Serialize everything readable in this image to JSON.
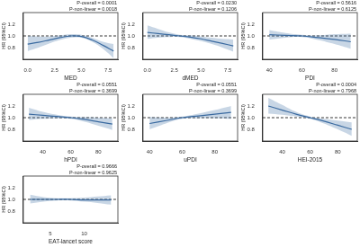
{
  "chart_data": [
    {
      "type": "line",
      "x_label": "MED",
      "y_label": "HR (95%CI)",
      "annotations": [
        "P-overall = 0.0001",
        "P-non-linear = 0.0018"
      ],
      "x": [
        0,
        1,
        2,
        3,
        4,
        5,
        6,
        7,
        8
      ],
      "values": [
        0.86,
        0.89,
        0.93,
        0.97,
        1.0,
        0.99,
        0.93,
        0.84,
        0.74
      ],
      "lower": [
        0.74,
        0.8,
        0.87,
        0.93,
        0.97,
        0.97,
        0.9,
        0.78,
        0.62
      ],
      "upper": [
        1.0,
        0.99,
        0.99,
        1.01,
        1.03,
        1.02,
        0.97,
        0.9,
        0.86
      ],
      "xlim": [
        -0.4,
        8.4
      ],
      "xticks": [
        {
          "value": 0,
          "label": "0.0"
        },
        {
          "value": 2.5,
          "label": "2.5"
        },
        {
          "value": 5,
          "label": "5.0"
        },
        {
          "value": 7.5,
          "label": "7.5"
        }
      ],
      "ylim": [
        0.6,
        1.4
      ],
      "yticks": [
        0.8,
        {
          "value": 1,
          "label": "1.0"
        },
        1.2
      ],
      "reference_line": 1,
      "color": "#3b6aa0"
    },
    {
      "type": "line",
      "x_label": "dMED",
      "y_label": "HR (95%CI)",
      "annotations": [
        "P-overall = 0.0230",
        "P-non-linear = 0.1206"
      ],
      "x": [
        0,
        1,
        2,
        3,
        4,
        5,
        6,
        7,
        8
      ],
      "values": [
        1.06,
        1.04,
        1.02,
        1.0,
        0.98,
        0.95,
        0.91,
        0.87,
        0.83
      ],
      "lower": [
        0.95,
        0.97,
        0.98,
        0.98,
        0.95,
        0.91,
        0.86,
        0.8,
        0.73
      ],
      "upper": [
        1.18,
        1.12,
        1.06,
        1.02,
        1.01,
        0.99,
        0.97,
        0.95,
        0.94
      ],
      "xlim": [
        -0.4,
        8.4
      ],
      "xticks": [
        {
          "value": 0,
          "label": "0.0"
        },
        {
          "value": 2.5,
          "label": "2.5"
        },
        {
          "value": 5,
          "label": "5.0"
        },
        {
          "value": 7.5,
          "label": "7.5"
        }
      ],
      "ylim": [
        0.6,
        1.4
      ],
      "yticks": [
        0.8,
        {
          "value": 1,
          "label": "1.0"
        },
        1.2
      ],
      "reference_line": 1,
      "color": "#3b6aa0"
    },
    {
      "type": "line",
      "x_label": "PDI",
      "y_label": "HR (95%CI)",
      "annotations": [
        "P-overall = 0.5616",
        "P-non-linear = 0.6125"
      ],
      "x": [
        40,
        50,
        60,
        70,
        80,
        90
      ],
      "values": [
        1.02,
        1.01,
        1.0,
        0.97,
        0.94,
        0.9
      ],
      "lower": [
        0.94,
        0.97,
        0.98,
        0.93,
        0.86,
        0.78
      ],
      "upper": [
        1.1,
        1.05,
        1.02,
        1.01,
        1.03,
        1.04
      ],
      "xlim": [
        36,
        94
      ],
      "xticks": [
        40,
        60,
        80
      ],
      "ylim": [
        0.6,
        1.4
      ],
      "yticks": [
        0.8,
        {
          "value": 1,
          "label": "1.0"
        },
        1.2
      ],
      "reference_line": 1,
      "color": "#3b6aa0"
    },
    {
      "type": "line",
      "x_label": "hPDI",
      "y_label": "HR (95%CI)",
      "annotations": [
        "P-overall = 0.0551",
        "P-non-linear = 0.3699"
      ],
      "x": [
        30,
        40,
        50,
        60,
        70,
        80,
        90
      ],
      "values": [
        1.06,
        1.04,
        1.02,
        1.0,
        0.97,
        0.93,
        0.89
      ],
      "lower": [
        0.96,
        0.98,
        0.99,
        0.98,
        0.93,
        0.86,
        0.79
      ],
      "upper": [
        1.17,
        1.1,
        1.05,
        1.02,
        1.01,
        1.0,
        0.99
      ],
      "xlim": [
        26,
        94
      ],
      "xticks": [
        40,
        60,
        80
      ],
      "ylim": [
        0.6,
        1.4
      ],
      "yticks": [
        0.8,
        {
          "value": 1,
          "label": "1.0"
        },
        1.2
      ],
      "reference_line": 1,
      "color": "#3b6aa0"
    },
    {
      "type": "line",
      "x_label": "uPDI",
      "y_label": "HR (95%CI)",
      "annotations": [
        "P-overall = 0.0551",
        "P-non-linear = 0.3699"
      ],
      "x": [
        40,
        50,
        60,
        70,
        80,
        90
      ],
      "values": [
        0.9,
        0.95,
        1.0,
        1.03,
        1.06,
        1.09
      ],
      "lower": [
        0.8,
        0.9,
        0.98,
        0.99,
        0.99,
        0.98
      ],
      "upper": [
        1.01,
        1.0,
        1.02,
        1.07,
        1.13,
        1.2
      ],
      "xlim": [
        36,
        94
      ],
      "xticks": [
        40,
        60,
        80
      ],
      "ylim": [
        0.6,
        1.4
      ],
      "yticks": [
        0.8,
        {
          "value": 1,
          "label": "1.0"
        },
        1.2
      ],
      "reference_line": 1,
      "color": "#3b6aa0"
    },
    {
      "type": "line",
      "x_label": "HEI-2015",
      "y_label": "HR (95%CI)",
      "annotations": [
        "P-overall = 0.0004",
        "P-non-linear = 0.7968"
      ],
      "x": [
        30,
        40,
        50,
        60,
        70,
        80,
        90
      ],
      "values": [
        1.2,
        1.13,
        1.06,
        1.0,
        0.94,
        0.87,
        0.8
      ],
      "lower": [
        1.07,
        1.05,
        1.02,
        0.98,
        0.9,
        0.8,
        0.69
      ],
      "upper": [
        1.34,
        1.22,
        1.1,
        1.02,
        0.98,
        0.95,
        0.92
      ],
      "xlim": [
        26,
        94
      ],
      "xticks": [
        40,
        60,
        80
      ],
      "ylim": [
        0.6,
        1.4
      ],
      "yticks": [
        0.8,
        {
          "value": 1,
          "label": "1.0"
        },
        1.2
      ],
      "reference_line": 1,
      "color": "#3b6aa0"
    },
    {
      "type": "line",
      "x_label": "EAT-lancet score",
      "y_label": "HR (95%CI)",
      "annotations": [
        "P-overall = 0.9666",
        "P-non-linear = 0.9625"
      ],
      "x": [
        2,
        4,
        6,
        8,
        10,
        12,
        14
      ],
      "values": [
        1.0,
        1.0,
        1.0,
        1.0,
        0.99,
        0.99,
        0.99
      ],
      "lower": [
        0.93,
        0.96,
        0.98,
        0.98,
        0.96,
        0.94,
        0.91
      ],
      "upper": [
        1.08,
        1.04,
        1.02,
        1.02,
        1.03,
        1.05,
        1.07
      ],
      "xlim": [
        1,
        15
      ],
      "xticks": [
        5,
        10
      ],
      "ylim": [
        0.6,
        1.4
      ],
      "yticks": [
        0.8,
        {
          "value": 1,
          "label": "1.0"
        },
        1.2
      ],
      "reference_line": 1,
      "color": "#3b6aa0"
    }
  ]
}
